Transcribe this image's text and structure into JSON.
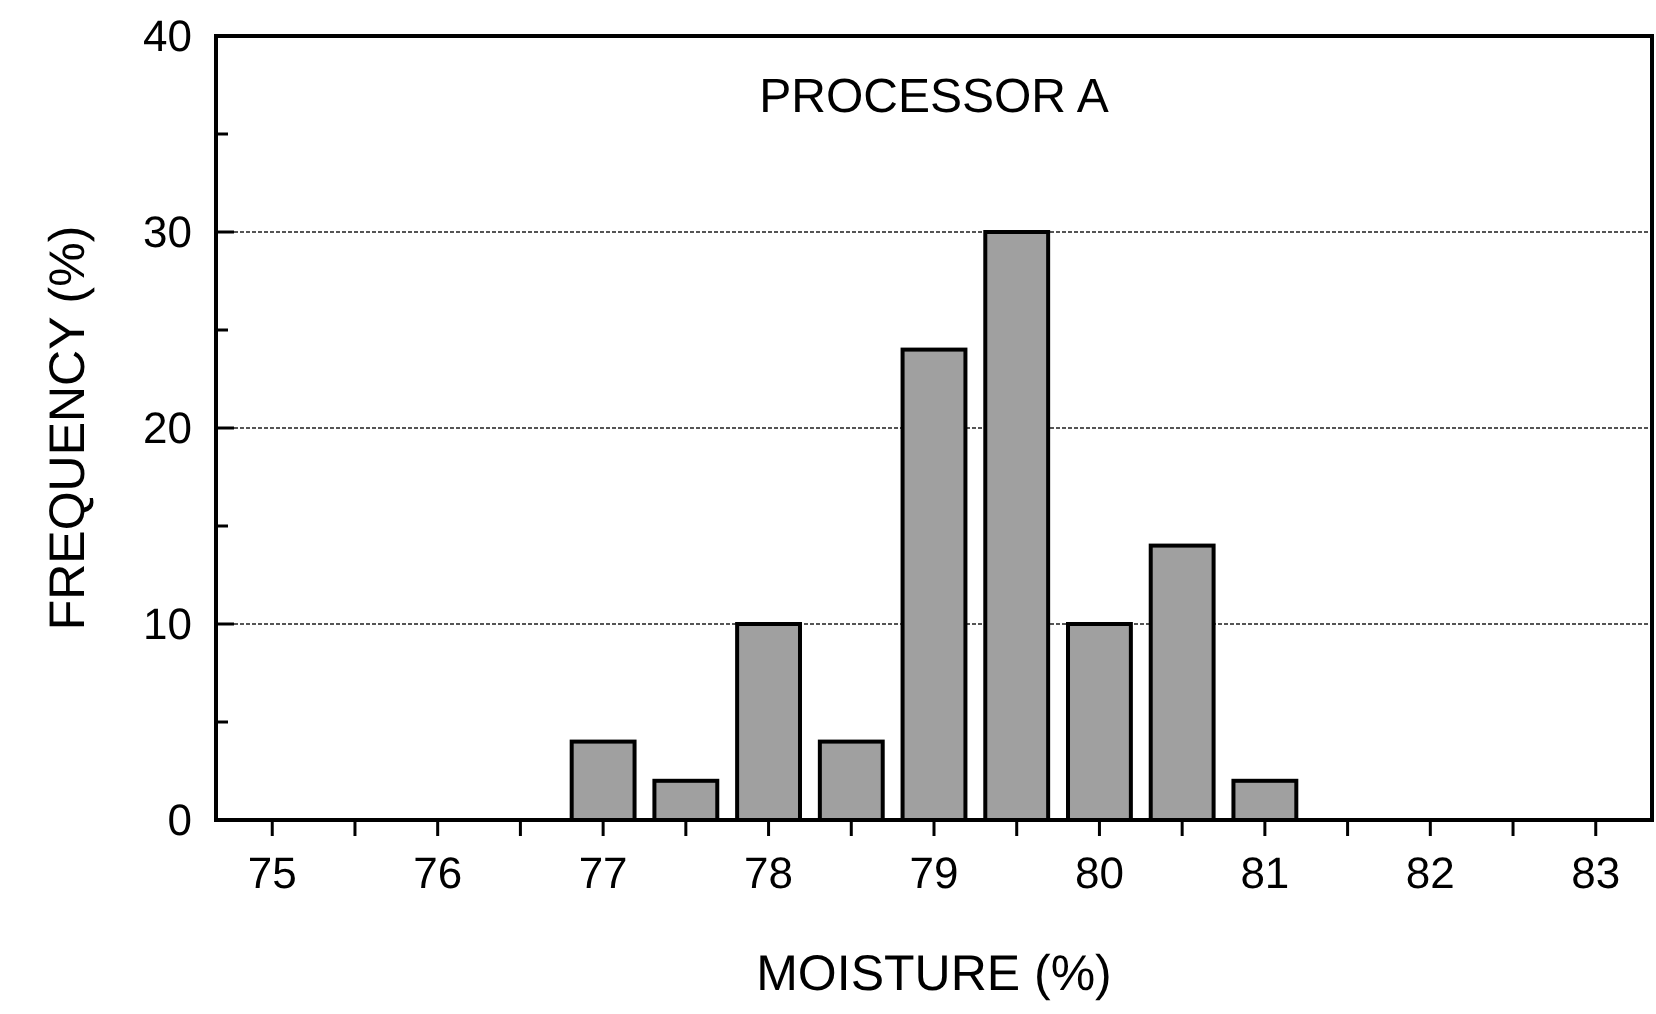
{
  "chart_data": {
    "type": "bar",
    "title": "PROCESSOR A",
    "xlabel": "MOISTURE (%)",
    "ylabel": "FREQUENCY (%)",
    "x": [
      77,
      77.5,
      78,
      78.5,
      79,
      79.5,
      80,
      80.5,
      81
    ],
    "values": [
      4,
      2,
      10,
      4,
      24,
      30,
      10,
      14,
      2
    ],
    "color": "#a0a0a0",
    "xlim": [
      74.66,
      83.34
    ],
    "xticks": [
      75,
      {
        "value": 75.5,
        "label": null
      },
      76,
      {
        "value": 76.5,
        "label": null
      },
      77,
      {
        "value": 77.5,
        "label": null
      },
      78,
      {
        "value": 78.5,
        "label": null
      },
      79,
      {
        "value": 79.5,
        "label": null
      },
      80,
      {
        "value": 80.5,
        "label": null
      },
      81,
      {
        "value": 81.5,
        "label": null
      },
      82,
      {
        "value": 82.5,
        "label": null
      },
      83
    ],
    "ylim": [
      0,
      40
    ],
    "yticks": [
      0,
      {
        "value": 5,
        "label": null
      },
      10,
      {
        "value": 15,
        "label": null
      },
      20,
      {
        "value": 25,
        "label": null
      },
      30,
      {
        "value": 35,
        "label": null
      },
      40
    ],
    "grid": "y"
  }
}
